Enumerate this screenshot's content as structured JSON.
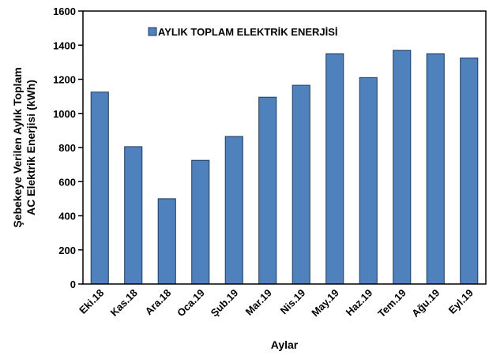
{
  "chart_data": {
    "type": "bar",
    "y_label": [
      "Şebekeye Verilen Aylık Toplam",
      "AC Elektrik Enerjisi (kWh)"
    ],
    "x_label": "Aylar",
    "categories": [
      "Eki.18",
      "Kas.18",
      "Ara.18",
      "Oca.19",
      "Şub.19",
      "Mar.19",
      "Nis.19",
      "May.19",
      "Haz.19",
      "Tem.19",
      "Ağu.19",
      "Eyl.19"
    ],
    "series": [
      {
        "name": "AYLIK TOPLAM ELEKTRİK ENERJİSİ",
        "color": "#4f81bd",
        "values": [
          1125,
          805,
          500,
          725,
          865,
          1095,
          1165,
          1350,
          1210,
          1370,
          1350,
          1325
        ]
      }
    ],
    "ylim": [
      0,
      1600
    ],
    "yticks": [
      0,
      200,
      400,
      600,
      800,
      1000,
      1200,
      1400,
      1600
    ],
    "legend": "top",
    "grid": false
  }
}
